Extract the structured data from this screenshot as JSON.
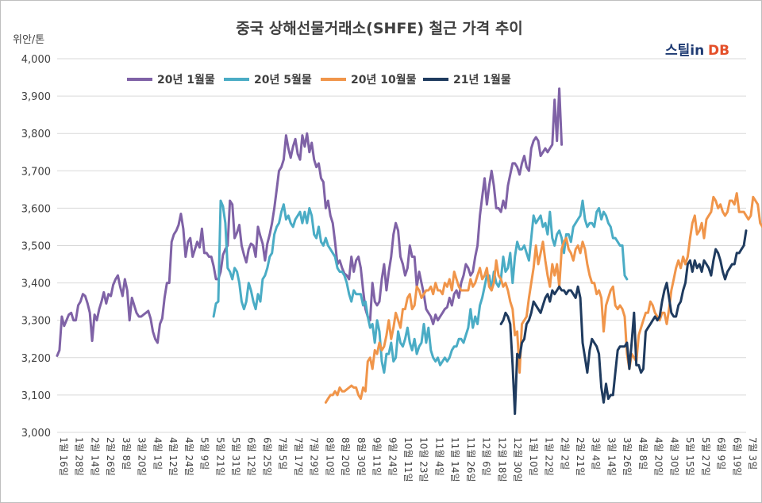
{
  "chart_data": {
    "type": "line",
    "title": "중국 상해선물거래소(SHFE) 철근 가격 추이",
    "ylabel": "위안/톤",
    "ylim": [
      3000,
      4000
    ],
    "yticks": [
      "3,000",
      "3,100",
      "3,200",
      "3,300",
      "3,400",
      "3,500",
      "3,600",
      "3,700",
      "3,800",
      "3,900",
      "4,000"
    ],
    "grid": true,
    "legend_position": "top-left",
    "x_labels": [
      "1월 16일",
      "1월 28일",
      "2월 14일",
      "2월 26일",
      "3월 8일",
      "3월 20일",
      "4월 1일",
      "4월 12일",
      "4월 24일",
      "5월 9일",
      "5월 21일",
      "5월 31일",
      "6월 12일",
      "6월 25일",
      "7월 5일",
      "7월 17일",
      "7월 29일",
      "8월 10일",
      "8월 20일",
      "8월 30일",
      "9월 11일",
      "9월 24일",
      "10월 11일",
      "10월 23일",
      "11월 4일",
      "11월 14일",
      "11월 26일",
      "12월 6일",
      "12월 18일",
      "12월 30일",
      "1월 10일",
      "1월 22일",
      "2월 2일",
      "2월 21일",
      "3월 4일",
      "3월 14일",
      "3월 26일",
      "4월 8일",
      "4월 20일",
      "4월 30일",
      "5월 15일",
      "5월 27일",
      "6월 9일",
      "6월 19일",
      "7월 3일"
    ],
    "series": [
      {
        "name": "20년 1월물",
        "color": "#7f62a6",
        "x_start": 0,
        "values": [
          3205,
          3220,
          3310,
          3285,
          3300,
          3315,
          3320,
          3300,
          3300,
          3340,
          3350,
          3370,
          3365,
          3345,
          3320,
          3245,
          3315,
          3300,
          3330,
          3350,
          3375,
          3345,
          3370,
          3365,
          3395,
          3410,
          3420,
          3390,
          3365,
          3410,
          3380,
          3300,
          3360,
          3340,
          3320,
          3310,
          3310,
          3315,
          3320,
          3325,
          3305,
          3270,
          3250,
          3240,
          3290,
          3305,
          3360,
          3400,
          3400,
          3510,
          3530,
          3540,
          3555,
          3585,
          3545,
          3470,
          3510,
          3520,
          3470,
          3490,
          3510,
          3495,
          3545,
          3480,
          3480,
          3470,
          3470,
          3445,
          3410,
          3410,
          3430,
          3475,
          3490,
          3500,
          3620,
          3610,
          3520,
          3535,
          3555,
          3500,
          3475,
          3455,
          3490,
          3505,
          3500,
          3470,
          3550,
          3525,
          3505,
          3460,
          3505,
          3530,
          3560,
          3600,
          3650,
          3700,
          3710,
          3730,
          3795,
          3760,
          3735,
          3765,
          3785,
          3745,
          3730,
          3795,
          3765,
          3800,
          3750,
          3775,
          3730,
          3710,
          3720,
          3680,
          3670,
          3600,
          3620,
          3580,
          3560,
          3510,
          3450,
          3460,
          3440,
          3425,
          3420,
          3410,
          3470,
          3430,
          3460,
          3470,
          3440,
          3380,
          3330,
          3310,
          3300,
          3400,
          3350,
          3340,
          3350,
          3410,
          3450,
          3380,
          3430,
          3470,
          3530,
          3560,
          3540,
          3470,
          3450,
          3420,
          3440,
          3500,
          3470,
          3470,
          3390,
          3430,
          3400,
          3370,
          3330,
          3320,
          3310,
          3290,
          3315,
          3300,
          3310,
          3320,
          3330,
          3335,
          3360,
          3340,
          3370,
          3380,
          3360,
          3400,
          3420,
          3450,
          3440,
          3420,
          3430,
          3470,
          3500,
          3580,
          3630,
          3680,
          3610,
          3660,
          3700,
          3660,
          3600,
          3600,
          3590,
          3620,
          3600,
          3660,
          3690,
          3720,
          3720,
          3710,
          3690,
          3720,
          3740,
          3710,
          3700,
          3760,
          3780,
          3790,
          3780,
          3740,
          3750,
          3760,
          3750,
          3760,
          3770,
          3890,
          3780,
          3920,
          3770
        ]
      },
      {
        "name": "20년 5월물",
        "color": "#4aacc5",
        "x_start": 67,
        "values": [
          3310,
          3345,
          3350,
          3620,
          3605,
          3560,
          3440,
          3430,
          3410,
          3440,
          3430,
          3400,
          3350,
          3330,
          3350,
          3400,
          3380,
          3350,
          3330,
          3370,
          3350,
          3410,
          3420,
          3440,
          3470,
          3480,
          3530,
          3550,
          3560,
          3590,
          3610,
          3570,
          3580,
          3560,
          3550,
          3570,
          3580,
          3590,
          3560,
          3590,
          3560,
          3600,
          3580,
          3530,
          3520,
          3550,
          3510,
          3500,
          3520,
          3500,
          3490,
          3480,
          3470,
          3440,
          3430,
          3430,
          3420,
          3400,
          3370,
          3350,
          3380,
          3370,
          3370,
          3370,
          3340,
          3350,
          3310,
          3280,
          3290,
          3240,
          3300,
          3270,
          3190,
          3160,
          3210,
          3210,
          3240,
          3190,
          3200,
          3270,
          3240,
          3230,
          3250,
          3280,
          3240,
          3220,
          3250,
          3210,
          3230,
          3240,
          3290,
          3240,
          3280,
          3220,
          3200,
          3190,
          3200,
          3180,
          3190,
          3200,
          3190,
          3200,
          3220,
          3230,
          3230,
          3250,
          3250,
          3240,
          3260,
          3280,
          3330,
          3280,
          3310,
          3290,
          3340,
          3360,
          3390,
          3420,
          3420,
          3380,
          3430,
          3400,
          3390,
          3410,
          3470,
          3430,
          3440,
          3480,
          3400,
          3470,
          3510,
          3490,
          3490,
          3500,
          3480,
          3460,
          3520,
          3580,
          3560,
          3570,
          3580,
          3550,
          3560,
          3530,
          3590,
          3520,
          3500,
          3530,
          3540,
          3520,
          3480,
          3530,
          3530,
          3510,
          3550,
          3560,
          3570,
          3580,
          3620,
          3570,
          3550,
          3560,
          3560,
          3550,
          3590,
          3600,
          3570,
          3590,
          3580,
          3560,
          3550,
          3520,
          3520,
          3510,
          3500,
          3500,
          3420,
          3410
        ]
      },
      {
        "name": "20년 10월물",
        "color": "#f0954a",
        "x_start": 115,
        "values": [
          3080,
          3090,
          3100,
          3100,
          3110,
          3100,
          3120,
          3110,
          3110,
          3115,
          3120,
          3125,
          3120,
          3120,
          3100,
          3090,
          3120,
          3110,
          3190,
          3200,
          3170,
          3220,
          3210,
          3240,
          3220,
          3230,
          3260,
          3300,
          3250,
          3280,
          3320,
          3300,
          3280,
          3330,
          3330,
          3360,
          3370,
          3330,
          3340,
          3390,
          3380,
          3360,
          3370,
          3380,
          3380,
          3390,
          3370,
          3400,
          3380,
          3380,
          3370,
          3400,
          3390,
          3410,
          3380,
          3430,
          3410,
          3390,
          3380,
          3380,
          3380,
          3380,
          3410,
          3390,
          3400,
          3420,
          3440,
          3410,
          3420,
          3440,
          3390,
          3380,
          3400,
          3460,
          3420,
          3410,
          3390,
          3400,
          3380,
          3350,
          3330,
          3260,
          3270,
          3160,
          3290,
          3300,
          3310,
          3360,
          3400,
          3440,
          3500,
          3450,
          3480,
          3510,
          3460,
          3420,
          3390,
          3450,
          3420,
          3450,
          3390,
          3490,
          3510,
          3520,
          3490,
          3480,
          3460,
          3490,
          3500,
          3480,
          3510,
          3490,
          3450,
          3420,
          3400,
          3400,
          3370,
          3380,
          3360,
          3270,
          3340,
          3360,
          3380,
          3390,
          3340,
          3330,
          3340,
          3330,
          3310,
          3210,
          3170,
          3210,
          3200,
          3190,
          3260,
          3280,
          3300,
          3320,
          3320,
          3350,
          3340,
          3320,
          3310,
          3300,
          3320,
          3320,
          3290,
          3330,
          3380,
          3410,
          3440,
          3460,
          3440,
          3470,
          3450,
          3470,
          3520,
          3560,
          3580,
          3530,
          3540,
          3560,
          3520,
          3570,
          3580,
          3590,
          3630,
          3620,
          3600,
          3610,
          3590,
          3580,
          3590,
          3620,
          3620,
          3610,
          3640,
          3590,
          3590,
          3590,
          3580,
          3570,
          3580,
          3630,
          3620,
          3610,
          3560,
          3550,
          3560,
          3570,
          3620,
          3620,
          3640,
          3700
        ]
      },
      {
        "name": "21년 1월물",
        "color": "#1f3b5f",
        "x_start": 190,
        "values": [
          3290,
          3300,
          3320,
          3310,
          3290,
          3180,
          3050,
          3210,
          3200,
          3240,
          3250,
          3290,
          3300,
          3320,
          3350,
          3340,
          3330,
          3320,
          3340,
          3360,
          3370,
          3350,
          3380,
          3370,
          3380,
          3390,
          3380,
          3380,
          3370,
          3380,
          3380,
          3370,
          3360,
          3390,
          3360,
          3240,
          3200,
          3160,
          3220,
          3250,
          3240,
          3230,
          3210,
          3120,
          3080,
          3130,
          3090,
          3100,
          3100,
          3160,
          3220,
          3230,
          3230,
          3230,
          3240,
          3170,
          3240,
          3320,
          3180,
          3180,
          3160,
          3170,
          3270,
          3280,
          3290,
          3300,
          3310,
          3300,
          3310,
          3350,
          3380,
          3400,
          3360,
          3320,
          3310,
          3310,
          3340,
          3350,
          3380,
          3400,
          3450,
          3460,
          3430,
          3460,
          3440,
          3450,
          3430,
          3460,
          3450,
          3440,
          3420,
          3460,
          3490,
          3480,
          3460,
          3430,
          3410,
          3430,
          3440,
          3450,
          3450,
          3480,
          3480,
          3490,
          3500,
          3540
        ]
      }
    ]
  },
  "logo": {
    "part1": "스틸in",
    "part2": "DB"
  }
}
